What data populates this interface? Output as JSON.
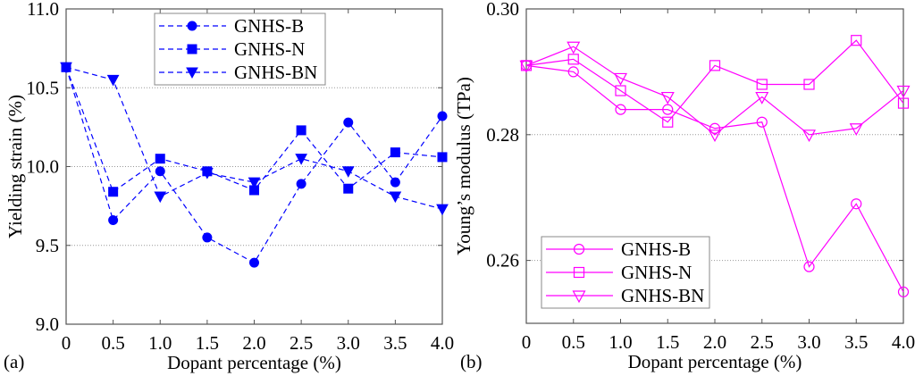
{
  "chart_data": [
    {
      "type": "line",
      "panel_label": "(a)",
      "title": "",
      "xlabel": "Dopant percentage (%)",
      "ylabel": "Yielding strain (%)",
      "x": [
        0,
        0.5,
        1.0,
        1.5,
        2.0,
        2.5,
        3.0,
        3.5,
        4.0
      ],
      "xticks": [
        "0",
        "0.5",
        "1.0",
        "1.5",
        "2.0",
        "2.5",
        "3.0",
        "3.5",
        "4.0"
      ],
      "xlim": [
        0,
        4.0
      ],
      "ylim": [
        9.0,
        11.0
      ],
      "yticks": [
        "9.0",
        "9.5",
        "10.0",
        "10.5",
        "11.0"
      ],
      "ytick_values": [
        9.0,
        9.5,
        10.0,
        10.5,
        11.0
      ],
      "grid": "horizontal-dotted",
      "legend_position": "top-center",
      "line_style": "dashed",
      "color": "#0000ff",
      "series": [
        {
          "name": "GNHS-B",
          "marker": "filled-circle",
          "values": [
            10.63,
            9.66,
            9.97,
            9.55,
            9.39,
            9.89,
            10.28,
            9.9,
            10.32
          ]
        },
        {
          "name": "GNHS-N",
          "marker": "filled-square",
          "values": [
            10.63,
            9.84,
            10.05,
            9.97,
            9.85,
            10.23,
            9.86,
            10.09,
            10.06
          ]
        },
        {
          "name": "GNHS-BN",
          "marker": "filled-down-triangle",
          "values": [
            10.63,
            10.55,
            9.81,
            9.96,
            9.9,
            10.05,
            9.97,
            9.81,
            9.73
          ]
        }
      ]
    },
    {
      "type": "line",
      "panel_label": "(b)",
      "title": "",
      "xlabel": "Dopant percentage (%)",
      "ylabel": "Young’s modulus (TPa)",
      "x": [
        0,
        0.5,
        1.0,
        1.5,
        2.0,
        2.5,
        3.0,
        3.5,
        4.0
      ],
      "xticks": [
        "0",
        "0.5",
        "1.0",
        "1.5",
        "2.0",
        "2.5",
        "3.0",
        "3.5",
        "4.0"
      ],
      "xlim": [
        0,
        4.0
      ],
      "ylim": [
        0.25,
        0.3
      ],
      "yticks": [
        "0.26",
        "0.28",
        "0.30"
      ],
      "ytick_values": [
        0.26,
        0.28,
        0.3
      ],
      "grid": "horizontal-dotted",
      "legend_position": "bottom-left",
      "line_style": "solid",
      "color": "#ff00ff",
      "series": [
        {
          "name": "GNHS-B",
          "marker": "open-circle",
          "values": [
            0.291,
            0.29,
            0.284,
            0.284,
            0.281,
            0.282,
            0.259,
            0.269,
            0.255
          ]
        },
        {
          "name": "GNHS-N",
          "marker": "open-square",
          "values": [
            0.291,
            0.292,
            0.287,
            0.282,
            0.291,
            0.288,
            0.288,
            0.295,
            0.285
          ]
        },
        {
          "name": "GNHS-BN",
          "marker": "open-down-triangle",
          "values": [
            0.291,
            0.294,
            0.289,
            0.286,
            0.28,
            0.286,
            0.28,
            0.281,
            0.287
          ]
        }
      ]
    }
  ]
}
